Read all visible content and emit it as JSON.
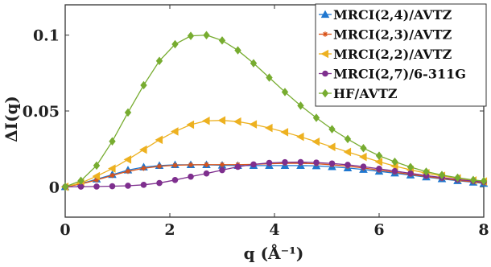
{
  "chart_data": {
    "type": "line",
    "xlabel": "q (Å⁻¹)",
    "ylabel": "ΔI(q)",
    "xlim": [
      0,
      8
    ],
    "ylim": [
      -0.02,
      0.12
    ],
    "xticks": [
      "0",
      "2",
      "4",
      "6",
      "8"
    ],
    "xtick_values": [
      0,
      2,
      4,
      6,
      8
    ],
    "yticks": [
      "0",
      "0.05",
      "0.1"
    ],
    "ytick_values": [
      0,
      0.05,
      0.1
    ],
    "grid": false,
    "legend_position": "top-right",
    "series": [
      {
        "name": "MRCI(2,4)/AVTZ",
        "color": "#1f77d0",
        "marker": "triangle-up",
        "x": [
          0,
          0.3,
          0.6,
          0.9,
          1.2,
          1.5,
          1.8,
          2.1,
          2.4,
          2.7,
          3.0,
          3.3,
          3.6,
          3.9,
          4.2,
          4.5,
          4.8,
          5.1,
          5.4,
          5.7,
          6.0,
          6.3,
          6.6,
          6.9,
          7.2,
          7.5,
          7.8,
          8.0
        ],
        "y": [
          0,
          0.002,
          0.005,
          0.008,
          0.011,
          0.013,
          0.014,
          0.0145,
          0.0145,
          0.0145,
          0.0142,
          0.014,
          0.014,
          0.014,
          0.014,
          0.014,
          0.0138,
          0.0132,
          0.0124,
          0.0114,
          0.0102,
          0.009,
          0.0077,
          0.0064,
          0.0052,
          0.004,
          0.003,
          0.0022
        ]
      },
      {
        "name": "MRCI(2,3)/AVTZ",
        "color": "#d95319",
        "marker": "star",
        "x": [
          0,
          0.3,
          0.6,
          0.9,
          1.2,
          1.5,
          1.8,
          2.1,
          2.4,
          2.7,
          3.0,
          3.3,
          3.6,
          3.9,
          4.2,
          4.5,
          4.8,
          5.1,
          5.4,
          5.7,
          6.0,
          6.3,
          6.6,
          6.9,
          7.2,
          7.5,
          7.8,
          8.0
        ],
        "y": [
          0,
          0.0018,
          0.0045,
          0.0075,
          0.0102,
          0.0122,
          0.0135,
          0.0142,
          0.0145,
          0.0146,
          0.0146,
          0.0146,
          0.0148,
          0.0152,
          0.0155,
          0.0155,
          0.0152,
          0.0145,
          0.0136,
          0.0124,
          0.011,
          0.0096,
          0.0082,
          0.0068,
          0.0055,
          0.0043,
          0.0033,
          0.0026
        ]
      },
      {
        "name": "MRCI(2,2)/AVTZ",
        "color": "#edb120",
        "marker": "triangle-left",
        "x": [
          0,
          0.3,
          0.6,
          0.9,
          1.2,
          1.5,
          1.8,
          2.1,
          2.4,
          2.7,
          3.0,
          3.3,
          3.6,
          3.9,
          4.2,
          4.5,
          4.8,
          5.1,
          5.4,
          5.7,
          6.0,
          6.3,
          6.6,
          6.9,
          7.2,
          7.5,
          7.8,
          8.0
        ],
        "y": [
          0,
          0.0025,
          0.007,
          0.012,
          0.018,
          0.0245,
          0.031,
          0.0365,
          0.041,
          0.0435,
          0.0438,
          0.043,
          0.0412,
          0.0388,
          0.036,
          0.033,
          0.0297,
          0.0263,
          0.023,
          0.0197,
          0.0165,
          0.0137,
          0.0112,
          0.009,
          0.0072,
          0.0056,
          0.0042,
          0.0035
        ]
      },
      {
        "name": "MRCI(2,7)/6-311G",
        "color": "#7e2f8e",
        "marker": "circle",
        "x": [
          0,
          0.3,
          0.6,
          0.9,
          1.2,
          1.5,
          1.8,
          2.1,
          2.4,
          2.7,
          3.0,
          3.3,
          3.6,
          3.9,
          4.2,
          4.5,
          4.8,
          5.1,
          5.4,
          5.7,
          6.0,
          6.3,
          6.6,
          6.9,
          7.2,
          7.5,
          7.8,
          8.0
        ],
        "y": [
          0,
          0.0001,
          0.0002,
          0.0004,
          0.0007,
          0.0013,
          0.0025,
          0.0045,
          0.0067,
          0.0088,
          0.011,
          0.0132,
          0.0148,
          0.0158,
          0.0162,
          0.0163,
          0.016,
          0.0154,
          0.0145,
          0.0133,
          0.0119,
          0.0104,
          0.0089,
          0.0074,
          0.0061,
          0.0048,
          0.0038,
          0.0032
        ]
      },
      {
        "name": "HF/AVTZ",
        "color": "#77ac30",
        "marker": "diamond",
        "x": [
          0,
          0.3,
          0.6,
          0.9,
          1.2,
          1.5,
          1.8,
          2.1,
          2.4,
          2.7,
          3.0,
          3.3,
          3.6,
          3.9,
          4.2,
          4.5,
          4.8,
          5.1,
          5.4,
          5.7,
          6.0,
          6.3,
          6.6,
          6.9,
          7.2,
          7.5,
          7.8,
          8.0
        ],
        "y": [
          0,
          0.004,
          0.014,
          0.03,
          0.049,
          0.067,
          0.083,
          0.094,
          0.0995,
          0.1,
          0.0965,
          0.09,
          0.0815,
          0.072,
          0.0625,
          0.0535,
          0.0455,
          0.038,
          0.0315,
          0.0255,
          0.0205,
          0.0165,
          0.013,
          0.01,
          0.0078,
          0.006,
          0.0045,
          0.0038
        ]
      }
    ]
  }
}
